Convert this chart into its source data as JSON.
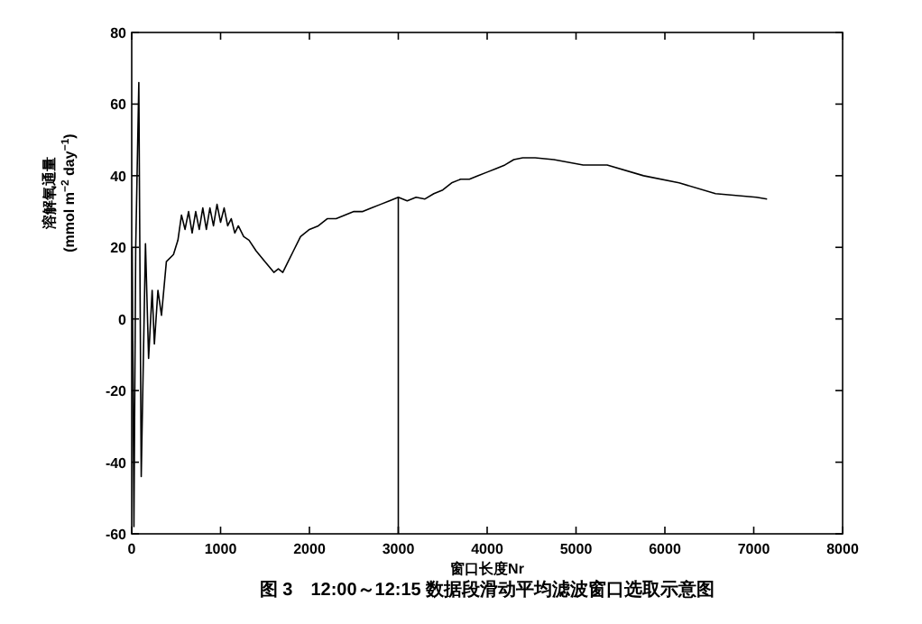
{
  "chart_data": {
    "type": "line",
    "xlabel": "窗口长度Nr",
    "ylabel": "溶解氧通量\n(mmol m$^{−2}$ day$^{−1}$)",
    "annotations": [
      "图 3　12:00～12:15 数据段滑动平均滤波窗口选取示意图"
    ],
    "x": [
      5,
      25,
      45,
      80,
      107,
      155,
      190,
      230,
      255,
      295,
      335,
      390,
      470,
      520,
      560,
      600,
      640,
      680,
      720,
      760,
      800,
      840,
      880,
      920,
      960,
      1000,
      1040,
      1080,
      1120,
      1160,
      1200,
      1260,
      1320,
      1400,
      1500,
      1600,
      1650,
      1700,
      1760,
      1820,
      1900,
      2000,
      2100,
      2200,
      2300,
      2400,
      2500,
      2600,
      2700,
      2800,
      2900,
      3000,
      3100,
      3200,
      3300,
      3400,
      3500,
      3600,
      3700,
      3800,
      3900,
      4000,
      4100,
      4200,
      4300,
      4400,
      4540,
      4750,
      5080,
      5350,
      5760,
      6160,
      6570,
      7030,
      7150
    ],
    "values": [
      20,
      -58,
      20,
      66,
      -44,
      21,
      -11,
      8,
      -7,
      8,
      1,
      16,
      18,
      22,
      29,
      25,
      30,
      24,
      30,
      25,
      31,
      25,
      31,
      26,
      32,
      27,
      31,
      26,
      28,
      24,
      26,
      23,
      22,
      19,
      16,
      13,
      14,
      13,
      16,
      19,
      23,
      25,
      26,
      28,
      28,
      29,
      30,
      30,
      31,
      32,
      33,
      34,
      33,
      34,
      33.5,
      35,
      36,
      38,
      39,
      39,
      40,
      41,
      42,
      43,
      44.5,
      45,
      45,
      44.5,
      43,
      43,
      40,
      38,
      35,
      34,
      33.5
    ],
    "xlim": [
      0,
      8000
    ],
    "ylim": [
      -60,
      80
    ],
    "xticks": [
      0,
      1000,
      2000,
      3000,
      4000,
      5000,
      6000,
      7000,
      8000
    ],
    "yticks": [
      -60,
      -40,
      -20,
      0,
      20,
      40,
      60,
      80
    ],
    "ref_lines": [
      {
        "axis": "x",
        "value": 3000,
        "label": null
      }
    ]
  }
}
